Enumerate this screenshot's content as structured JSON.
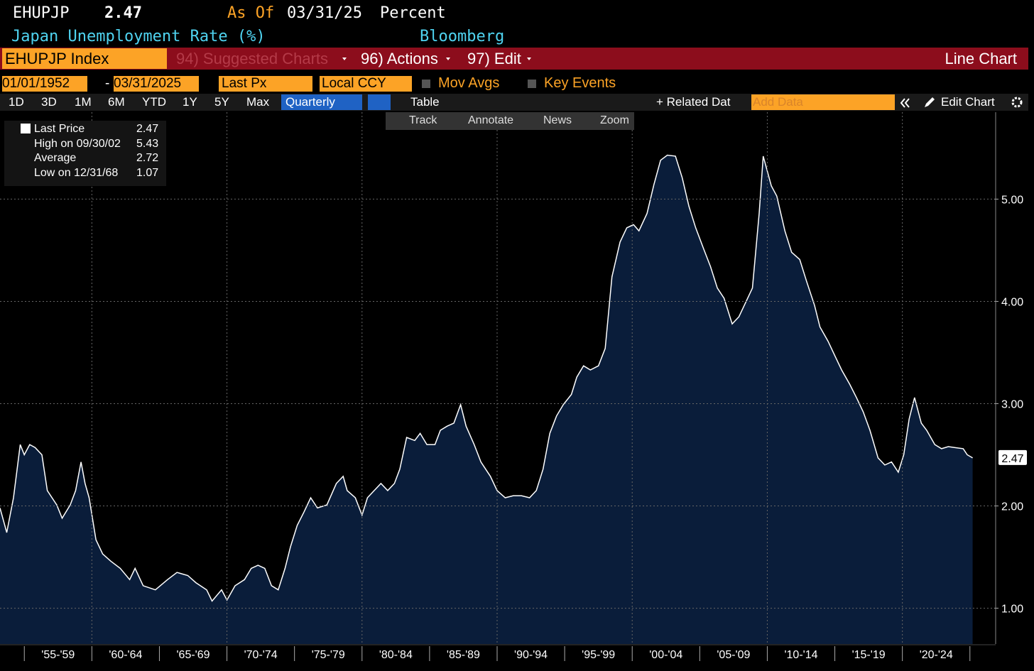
{
  "header": {
    "ticker": "EHUPJP",
    "last": "2.47",
    "as_of_label": "As Of",
    "as_of_date": "03/31/25",
    "units": "Percent",
    "description": "Japan Unemployment Rate (%)",
    "source": "Bloomberg"
  },
  "menu": {
    "security": "EHUPJP Index",
    "suggested": "94) Suggested Charts",
    "actions": "96) Actions",
    "edit": "97) Edit",
    "chart_kind": "Line Chart"
  },
  "range": {
    "start": "01/01/1952",
    "sep": "-",
    "end": "03/31/2025",
    "field": "Last Px",
    "currency": "Local CCY",
    "mov_avgs": "Mov Avgs",
    "key_events": "Key Events"
  },
  "periods": [
    "1D",
    "3D",
    "1M",
    "6M",
    "YTD",
    "1Y",
    "5Y",
    "Max"
  ],
  "toolbar": {
    "frequency": "Quarterly",
    "table": "Table",
    "related": "+ Related Dat",
    "add_data": "Add Data",
    "edit_chart": "Edit Chart"
  },
  "tools": [
    "Track",
    "Annotate",
    "News",
    "Zoom"
  ],
  "legend": {
    "rows": [
      {
        "label": "Last Price",
        "value": "2.47"
      },
      {
        "label": "High on 09/30/02",
        "value": "5.43"
      },
      {
        "label": "Average",
        "value": "2.72"
      },
      {
        "label": "Low on 12/31/68",
        "value": "1.07"
      }
    ]
  },
  "chart_data": {
    "type": "area",
    "line_color": "#ffffff",
    "fill_color": "#0a1d3a",
    "x": [
      1953.2,
      1953.7,
      1954.2,
      1954.7,
      1955.0,
      1955.4,
      1955.8,
      1956.3,
      1956.7,
      1957.4,
      1957.8,
      1958.4,
      1958.8,
      1959.2,
      1959.5,
      1959.8,
      1960.3,
      1960.8,
      1961.4,
      1962.1,
      1962.8,
      1963.2,
      1963.8,
      1964.7,
      1965.6,
      1966.3,
      1967.1,
      1967.7,
      1968.5,
      1968.9,
      1969.6,
      1970.0,
      1970.6,
      1971.3,
      1971.8,
      1972.3,
      1972.8,
      1973.3,
      1973.8,
      1974.3,
      1974.7,
      1975.2,
      1975.7,
      1976.2,
      1976.7,
      1977.4,
      1978.1,
      1978.6,
      1978.9,
      1979.5,
      1980.0,
      1980.4,
      1980.9,
      1981.4,
      1981.9,
      1982.4,
      1982.8,
      1983.3,
      1983.9,
      1984.3,
      1984.8,
      1985.4,
      1985.8,
      1986.3,
      1986.8,
      1987.3,
      1987.7,
      1988.3,
      1988.8,
      1989.5,
      1990.0,
      1990.6,
      1991.2,
      1991.8,
      1992.4,
      1992.9,
      1993.4,
      1993.9,
      1994.4,
      1994.9,
      1995.5,
      1995.9,
      1996.4,
      1996.9,
      1997.5,
      1998.0,
      1998.5,
      1999.1,
      1999.6,
      2000.1,
      2000.5,
      2001.1,
      2001.6,
      2002.1,
      2002.6,
      2003.2,
      2003.7,
      2004.2,
      2004.7,
      2005.3,
      2005.8,
      2006.3,
      2006.8,
      2007.4,
      2007.9,
      2008.4,
      2008.9,
      2009.4,
      2009.7,
      2010.3,
      2010.7,
      2011.3,
      2011.8,
      2012.4,
      2012.9,
      2013.5,
      2013.9,
      2014.5,
      2015.0,
      2015.5,
      2016.1,
      2016.6,
      2017.1,
      2017.6,
      2018.2,
      2018.7,
      2019.2,
      2019.7,
      2020.1,
      2020.5,
      2020.9,
      2021.4,
      2021.8,
      2022.4,
      2022.9,
      2023.4,
      2023.9,
      2024.5,
      2024.8,
      2025.2
    ],
    "values": [
      1.98,
      1.74,
      2.08,
      2.6,
      2.5,
      2.6,
      2.57,
      2.5,
      2.15,
      2.01,
      1.88,
      2.01,
      2.15,
      2.43,
      2.22,
      2.08,
      1.67,
      1.53,
      1.46,
      1.39,
      1.28,
      1.39,
      1.22,
      1.18,
      1.28,
      1.35,
      1.32,
      1.25,
      1.18,
      1.07,
      1.18,
      1.08,
      1.22,
      1.28,
      1.39,
      1.42,
      1.39,
      1.22,
      1.18,
      1.39,
      1.6,
      1.81,
      1.94,
      2.08,
      1.98,
      2.01,
      2.22,
      2.29,
      2.15,
      2.08,
      1.91,
      2.08,
      2.15,
      2.22,
      2.15,
      2.22,
      2.36,
      2.67,
      2.64,
      2.71,
      2.6,
      2.6,
      2.74,
      2.78,
      2.81,
      2.99,
      2.78,
      2.6,
      2.43,
      2.29,
      2.15,
      2.08,
      2.1,
      2.1,
      2.08,
      2.15,
      2.36,
      2.71,
      2.88,
      2.99,
      3.09,
      3.26,
      3.37,
      3.33,
      3.37,
      3.54,
      4.24,
      4.58,
      4.72,
      4.75,
      4.69,
      4.86,
      5.14,
      5.38,
      5.43,
      5.42,
      5.21,
      4.93,
      4.72,
      4.51,
      4.34,
      4.13,
      4.03,
      3.78,
      3.85,
      3.99,
      4.13,
      4.86,
      5.42,
      5.13,
      5.03,
      4.69,
      4.48,
      4.41,
      4.2,
      3.96,
      3.75,
      3.61,
      3.47,
      3.33,
      3.19,
      3.06,
      2.92,
      2.74,
      2.47,
      2.4,
      2.43,
      2.33,
      2.5,
      2.85,
      3.06,
      2.81,
      2.74,
      2.6,
      2.56,
      2.58,
      2.57,
      2.56,
      2.5,
      2.47
    ],
    "last_label": "2.47",
    "xlim": [
      1953.2,
      2026.8
    ],
    "xticks": [
      1955,
      1960,
      1965,
      1970,
      1975,
      1980,
      1985,
      1990,
      1995,
      2000,
      2005,
      2010,
      2015,
      2020,
      2025
    ],
    "xtick_labels": [
      "'55-'59",
      "'60-'64",
      "'65-'69",
      "'70-'74",
      "'75-'79",
      "'80-'84",
      "'85-'89",
      "'90-'94",
      "'95-'99",
      "'00-'04",
      "'05-'09",
      "'10-'14",
      "'15-'19",
      "'20-'24"
    ],
    "ylim": [
      0.65,
      5.85
    ],
    "yticks": [
      {
        "value": 1,
        "label": "1.00"
      },
      {
        "value": 2,
        "label": "2.00"
      },
      {
        "value": 3,
        "label": "3.00"
      },
      {
        "value": 4,
        "label": "4.00"
      },
      {
        "value": 5,
        "label": "5.00"
      }
    ],
    "grid": true
  }
}
